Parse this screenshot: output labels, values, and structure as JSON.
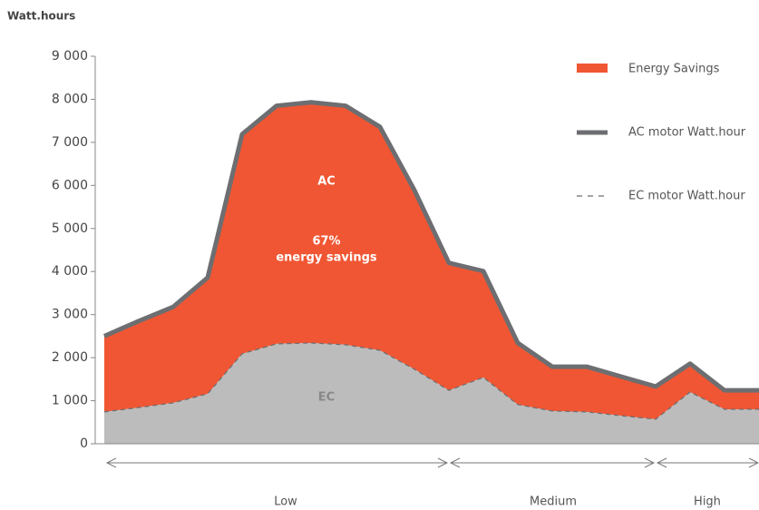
{
  "chart_data": {
    "type": "area",
    "y_axis_title": "Watt.hours",
    "categories": [
      null,
      null,
      null,
      null,
      null,
      null,
      null,
      null,
      null,
      null,
      null,
      null,
      null,
      null,
      null,
      null,
      null,
      null,
      null,
      null
    ],
    "series": [
      {
        "name": "AC motor Watt.hour",
        "color": "#6d6e71",
        "values": [
          2500,
          2850,
          3180,
          3860,
          7190,
          7850,
          7930,
          7850,
          7360,
          5890,
          4200,
          4010,
          2340,
          1790,
          1790,
          1560,
          1330,
          1860,
          1240,
          1240
        ]
      },
      {
        "name": "EC motor Watt.hour",
        "color": "#6d6e71",
        "values": [
          740,
          840,
          950,
          1160,
          2090,
          2320,
          2340,
          2300,
          2170,
          1730,
          1240,
          1540,
          910,
          760,
          740,
          650,
          570,
          1200,
          800,
          800
        ]
      }
    ],
    "savings": {
      "name": "Energy Savings",
      "color": "#f05633"
    },
    "ec_fill_color": "#bcbcbc",
    "ylim": [
      0,
      9000
    ],
    "yticks": [
      0,
      {
        "value": 1000,
        "label": "1 000"
      },
      {
        "value": 2000,
        "label": "2 000"
      },
      {
        "value": 3000,
        "label": "3 000"
      },
      {
        "value": 4000,
        "label": "4 000"
      },
      {
        "value": 5000,
        "label": "5 000"
      },
      {
        "value": 6000,
        "label": "6 000"
      },
      {
        "value": 7000,
        "label": "7 000"
      },
      {
        "value": 8000,
        "label": "8 000"
      },
      {
        "value": 9000,
        "label": "9 000"
      }
    ],
    "grid": false,
    "annotations": [
      "AC",
      "67%",
      "energy savings",
      "EC"
    ],
    "range_labels": [
      "Low",
      "Medium",
      "High"
    ]
  }
}
